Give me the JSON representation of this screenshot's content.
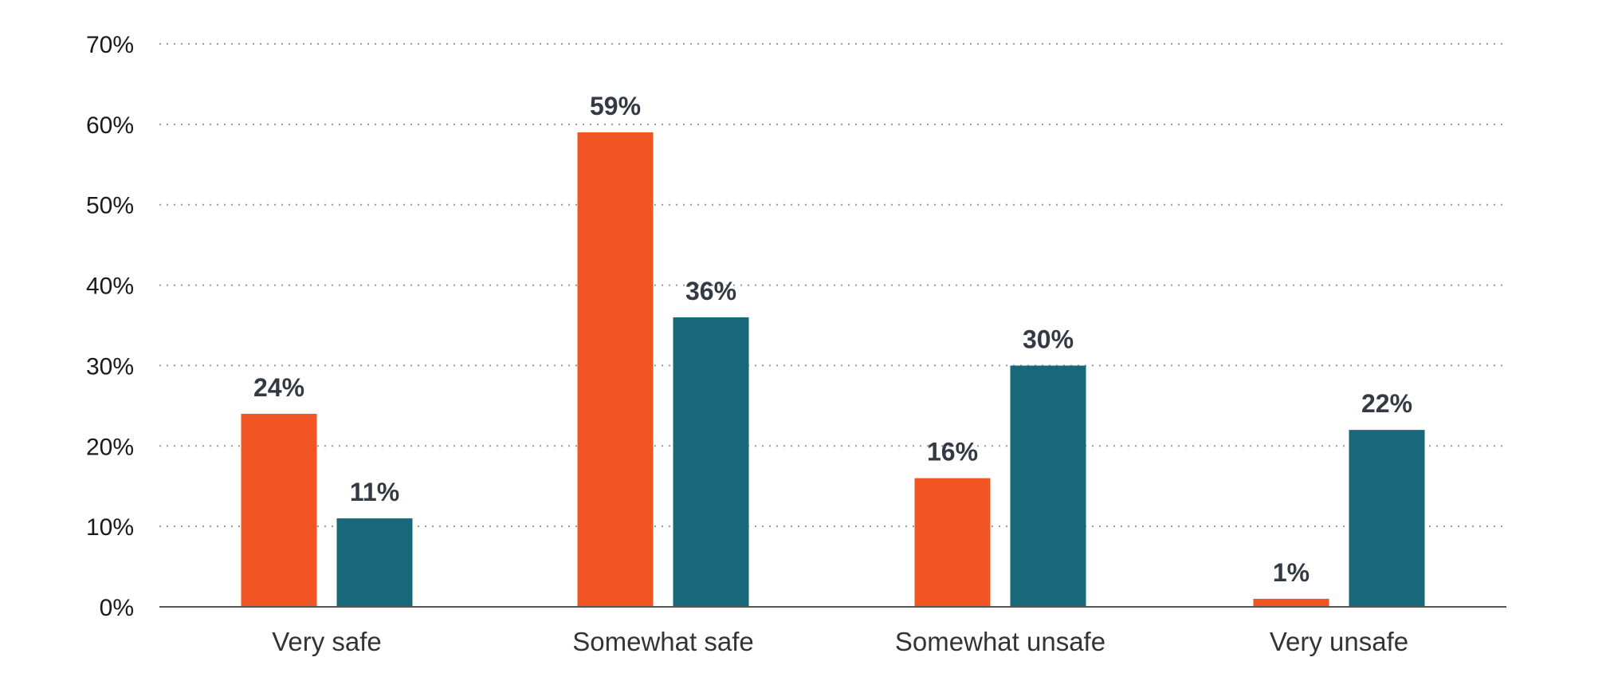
{
  "chart_data": {
    "type": "bar",
    "categories": [
      "Very safe",
      "Somewhat safe",
      "Somewhat unsafe",
      "Very unsafe"
    ],
    "series": [
      {
        "values": [
          24,
          59,
          16,
          1
        ],
        "labels": [
          "24%",
          "59%",
          "16%",
          "1%"
        ],
        "color": "#f05523"
      },
      {
        "values": [
          11,
          36,
          30,
          22
        ],
        "labels": [
          "11%",
          "36%",
          "30%",
          "22%"
        ],
        "color": "#17697a"
      }
    ],
    "yticks": [
      0,
      10,
      20,
      30,
      40,
      50,
      60,
      70
    ],
    "ytick_labels": [
      "0%",
      "10%",
      "20%",
      "30%",
      "40%",
      "50%",
      "60%",
      "70%"
    ],
    "ylim": [
      0,
      70
    ],
    "grid": true,
    "title": "",
    "xlabel": "",
    "ylabel": ""
  }
}
